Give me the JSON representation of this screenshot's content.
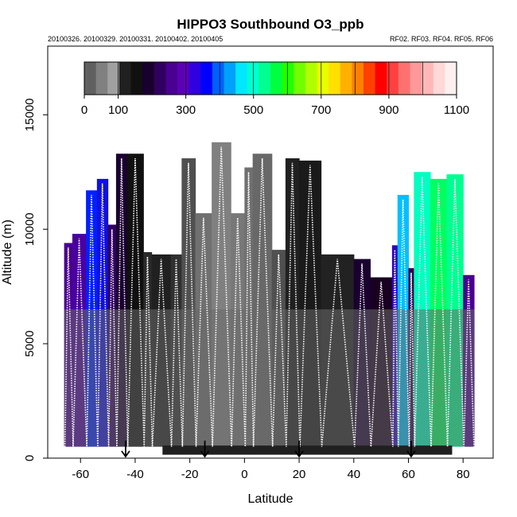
{
  "chart_data": {
    "type": "heatmap",
    "title": "HIPPO3 Southbound O3_ppb",
    "subtitle_left": "20100326. 20100329. 20100331. 20100402. 20100405",
    "subtitle_right": "RF02. RF03. RF04. RF05. RF06",
    "xlabel": "Latitude",
    "ylabel": "Altitude (m)",
    "xlim": [
      -72,
      91
    ],
    "ylim": [
      0,
      18000
    ],
    "x_ticks": [
      -60,
      -40,
      -20,
      0,
      20,
      40,
      60,
      80
    ],
    "y_ticks": [
      0,
      5000,
      10000,
      15000
    ],
    "colorbar": {
      "min": 0,
      "max": 1100,
      "tick_values": [
        0,
        100,
        300,
        500,
        700,
        900,
        1100
      ],
      "colors": [
        "#606060",
        "#808080",
        "#a0a0a0",
        "#202020",
        "#101010",
        "#1a0030",
        "#300060",
        "#4a0090",
        "#5c00b8",
        "#3000e0",
        "#0000ff",
        "#0060ff",
        "#00a0ff",
        "#00e8ff",
        "#00ffd0",
        "#00ff90",
        "#00ff40",
        "#20ff00",
        "#70ff00",
        "#b0ff00",
        "#e8ff00",
        "#ffe000",
        "#ffb000",
        "#ff8000",
        "#ff4000",
        "#ff0000",
        "#ff4040",
        "#ff7070",
        "#ff9898",
        "#ffb8b8",
        "#ffd8d8",
        "#fff0f0"
      ]
    },
    "arrows_latitude": [
      -43.5,
      -14.5,
      20,
      61
    ],
    "columns": [
      {
        "x0": -66,
        "x1": -63,
        "top": 9400,
        "color": "#4a0090"
      },
      {
        "x0": -63,
        "x1": -58,
        "top": 9800,
        "color": "#4a00a0"
      },
      {
        "x0": -58,
        "x1": -54,
        "top": 11700,
        "color": "#0020ff"
      },
      {
        "x0": -54,
        "x1": -50,
        "top": 12200,
        "color": "#1010e0"
      },
      {
        "x0": -50,
        "x1": -47,
        "top": 10200,
        "color": "#300060"
      },
      {
        "x0": -47,
        "x1": -43,
        "top": 13300,
        "color": "#1a0030"
      },
      {
        "x0": -43,
        "x1": -37,
        "top": 13300,
        "color": "#101010"
      },
      {
        "x0": -37,
        "x1": -34,
        "top": 9000,
        "color": "#2a2a2a"
      },
      {
        "x0": -34,
        "x1": -27,
        "top": 8900,
        "color": "#202020"
      },
      {
        "x0": -27,
        "x1": -23,
        "top": 8900,
        "color": "#303030"
      },
      {
        "x0": -23,
        "x1": -18,
        "top": 13100,
        "color": "#505050"
      },
      {
        "x0": -18,
        "x1": -12,
        "top": 10700,
        "color": "#707070"
      },
      {
        "x0": -12,
        "x1": -5,
        "top": 13800,
        "color": "#808080"
      },
      {
        "x0": -5,
        "x1": 0,
        "top": 10700,
        "color": "#787878"
      },
      {
        "x0": 0,
        "x1": 3,
        "top": 12700,
        "color": "#707070"
      },
      {
        "x0": 3,
        "x1": 10,
        "top": 13300,
        "color": "#686868"
      },
      {
        "x0": 10,
        "x1": 15,
        "top": 9100,
        "color": "#505050"
      },
      {
        "x0": 15,
        "x1": 20,
        "top": 13100,
        "color": "#202020"
      },
      {
        "x0": 20,
        "x1": 28,
        "top": 13000,
        "color": "#1a1a1a"
      },
      {
        "x0": 28,
        "x1": 40,
        "top": 8900,
        "color": "#222222"
      },
      {
        "x0": 40,
        "x1": 46,
        "top": 8700,
        "color": "#1a0030"
      },
      {
        "x0": 46,
        "x1": 54,
        "top": 7900,
        "color": "#1a0020"
      },
      {
        "x0": 54,
        "x1": 56,
        "top": 9300,
        "color": "#3000c0"
      },
      {
        "x0": 56,
        "x1": 60,
        "top": 11500,
        "color": "#00c0ff"
      },
      {
        "x0": 60,
        "x1": 62,
        "top": 8300,
        "color": "#300050"
      },
      {
        "x0": 62,
        "x1": 68,
        "top": 12500,
        "color": "#00ffc0"
      },
      {
        "x0": 68,
        "x1": 74,
        "top": 12200,
        "color": "#00ff60"
      },
      {
        "x0": 74,
        "x1": 80,
        "top": 12400,
        "color": "#00ff90"
      },
      {
        "x0": 80,
        "x1": 84,
        "top": 8000,
        "color": "#4a0090"
      }
    ]
  }
}
